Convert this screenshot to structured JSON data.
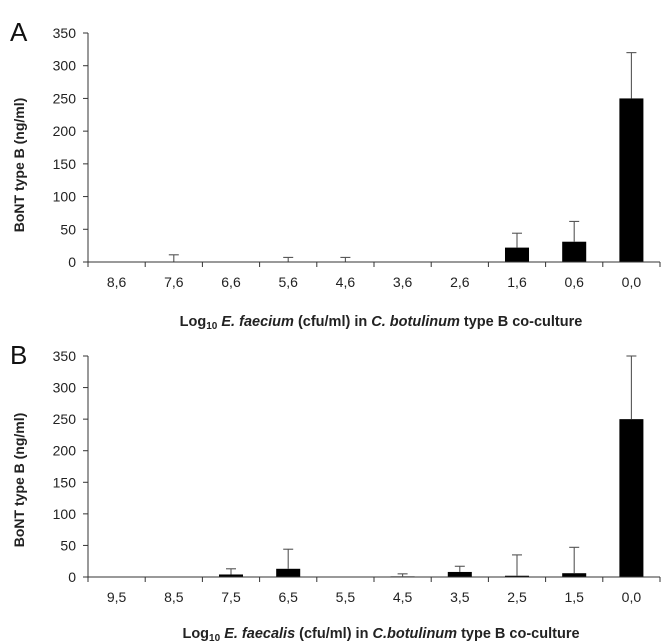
{
  "chart_data": [
    {
      "panel": "A",
      "type": "bar",
      "categories": [
        "8,6",
        "7,6",
        "6,6",
        "5,6",
        "4,6",
        "3,6",
        "2,6",
        "1,6",
        "0,6",
        "0,0"
      ],
      "values": [
        0,
        0,
        0,
        0,
        0,
        0,
        0,
        22,
        31,
        250
      ],
      "error_plus": [
        0,
        11,
        0,
        7,
        7,
        0,
        0,
        22,
        31,
        70
      ],
      "ylabel": "BoNT type B (ng/ml)",
      "xlabel": {
        "prefix": "Log",
        "sub": "10",
        "species": "E. faecium",
        "mid": " (cfu/ml) in ",
        "organism": "C. botulinum",
        "suffix": " type B co-culture"
      },
      "ylim": [
        0,
        350
      ],
      "yticks": [
        0,
        50,
        100,
        150,
        200,
        250,
        300,
        350
      ],
      "grid": false
    },
    {
      "panel": "B",
      "type": "bar",
      "categories": [
        "9,5",
        "8,5",
        "7,5",
        "6,5",
        "5,5",
        "4,5",
        "3,5",
        "2,5",
        "1,5",
        "0,0"
      ],
      "values": [
        0,
        0,
        4,
        13,
        0,
        1,
        8,
        2,
        6,
        250
      ],
      "error_plus": [
        0,
        0,
        9,
        31,
        0,
        4,
        9,
        33,
        41,
        100
      ],
      "ylabel": "BoNT type B (ng/ml)",
      "xlabel": {
        "prefix": "Log",
        "sub": "10",
        "species": "E. faecalis",
        "mid": " (cfu/ml) in ",
        "organism": "C.botulinum",
        "suffix": " type B co-culture"
      },
      "ylim": [
        0,
        350
      ],
      "yticks": [
        0,
        50,
        100,
        150,
        200,
        250,
        300,
        350
      ],
      "grid": false
    }
  ]
}
